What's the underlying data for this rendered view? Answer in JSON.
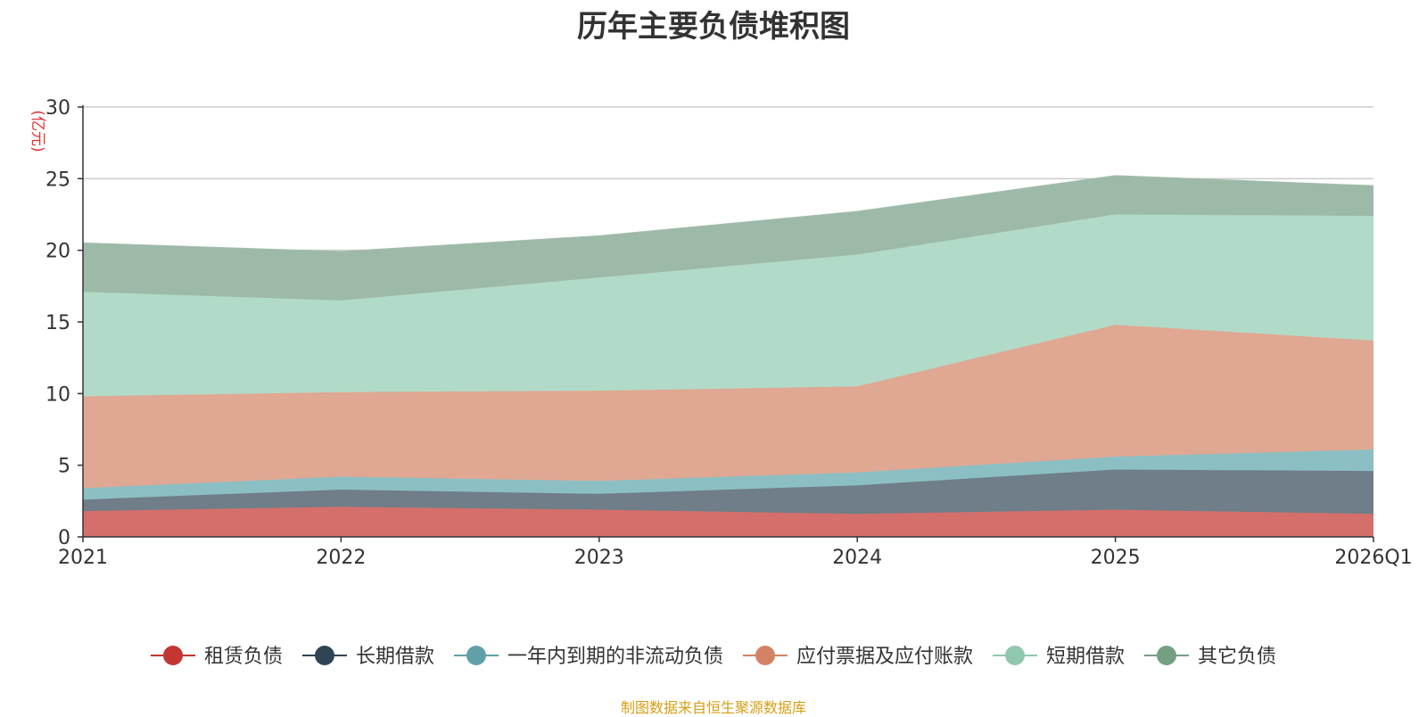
{
  "chart_data": {
    "type": "area",
    "stacked": true,
    "title": "历年主要负债堆积图",
    "ylabel": "(亿元)",
    "xlabel": "",
    "categories": [
      "2021",
      "2022",
      "2023",
      "2024",
      "2025",
      "2026Q1"
    ],
    "ylim": [
      0,
      30
    ],
    "yticks": [
      0,
      5,
      10,
      15,
      20,
      25,
      30
    ],
    "grid": true,
    "legend_position": "bottom",
    "series": [
      {
        "name": "租赁负债",
        "color": "#c23531",
        "fill": "#d46f6c",
        "values": [
          1.8,
          2.1,
          1.9,
          1.6,
          1.9,
          1.6
        ]
      },
      {
        "name": "长期借款",
        "color": "#2f4554",
        "fill": "#6f7e88",
        "values": [
          0.8,
          1.2,
          1.1,
          2.0,
          2.8,
          3.0
        ]
      },
      {
        "name": "一年内到期的非流动负债",
        "color": "#61a0a8",
        "fill": "#8cbfc4",
        "values": [
          0.8,
          0.9,
          0.9,
          0.9,
          0.9,
          1.5
        ]
      },
      {
        "name": "应付票据及应付账款",
        "color": "#d48265",
        "fill": "#e0a792",
        "values": [
          6.4,
          5.9,
          6.3,
          6.0,
          9.2,
          7.6
        ]
      },
      {
        "name": "短期借款",
        "color": "#91c7ae",
        "fill": "#b2dac8",
        "values": [
          7.3,
          6.4,
          7.9,
          9.2,
          7.7,
          8.7
        ]
      },
      {
        "name": "其它负债",
        "color": "#749f83",
        "fill": "#9db9a8",
        "values": [
          3.4,
          3.4,
          2.9,
          3.0,
          2.7,
          2.1
        ]
      }
    ]
  },
  "source_note": "制图数据来自恒生聚源数据库"
}
